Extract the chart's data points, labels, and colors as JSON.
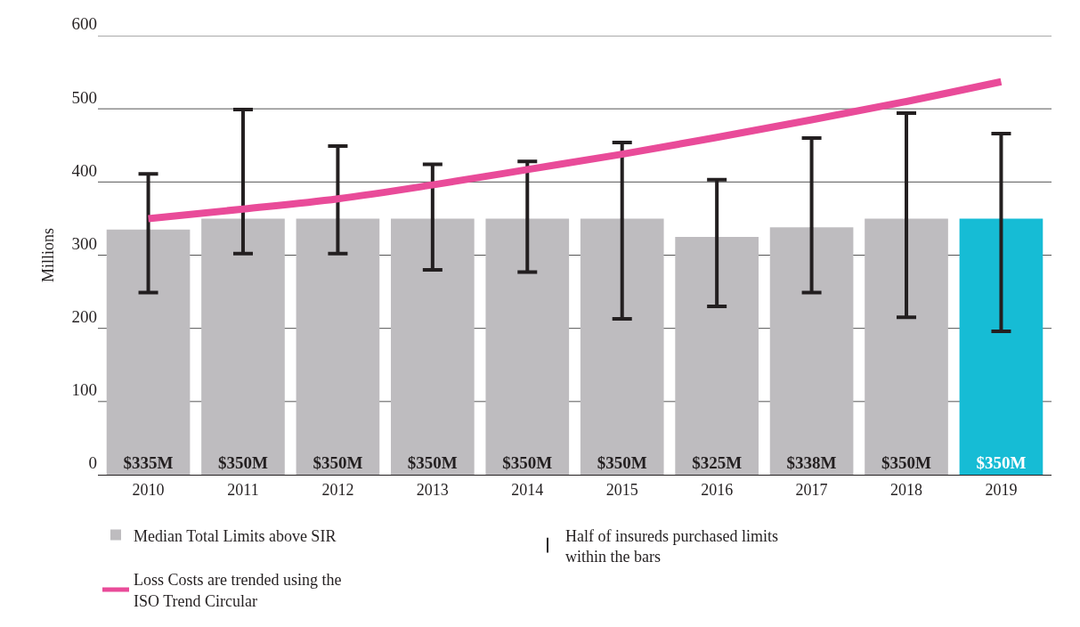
{
  "chart_data": {
    "type": "bar",
    "ylabel": "Millions",
    "categories": [
      "2010",
      "2011",
      "2012",
      "2013",
      "2014",
      "2015",
      "2016",
      "2017",
      "2018",
      "2019"
    ],
    "series": [
      {
        "name": "Median Total Limits above SIR",
        "colors": [
          "#bebcbf",
          "#bebcbf",
          "#bebcbf",
          "#bebcbf",
          "#bebcbf",
          "#bebcbf",
          "#bebcbf",
          "#bebcbf",
          "#bebcbf",
          "#16bcd5"
        ],
        "values": [
          335,
          350,
          350,
          350,
          350,
          350,
          325,
          338,
          350,
          350
        ],
        "value_labels": [
          "$335M",
          "$350M",
          "$350M",
          "$350M",
          "$350M",
          "$350M",
          "$325M",
          "$338M",
          "$350M",
          "$350M"
        ],
        "errors": [
          [
            249,
            411
          ],
          [
            302,
            499
          ],
          [
            302,
            449
          ],
          [
            280,
            424
          ],
          [
            277,
            428
          ],
          [
            213,
            454
          ],
          [
            230,
            403
          ],
          [
            249,
            460
          ],
          [
            215,
            494
          ],
          [
            196,
            466
          ]
        ]
      },
      {
        "name": "Loss Costs are trended using the ISO Trend Circular",
        "type": "line",
        "color": "#e94b99",
        "values": [
          350,
          363,
          377,
          396,
          417,
          438,
          461,
          485,
          510,
          537
        ]
      }
    ],
    "annotations": [
      "Half of insureds purchased limits within the bars"
    ],
    "ylim": [
      0,
      600
    ],
    "yticks": [
      0,
      100,
      200,
      300,
      400,
      500,
      600
    ],
    "grid": "y",
    "legend": "bottom",
    "marker": "none",
    "line_style": "solid"
  }
}
